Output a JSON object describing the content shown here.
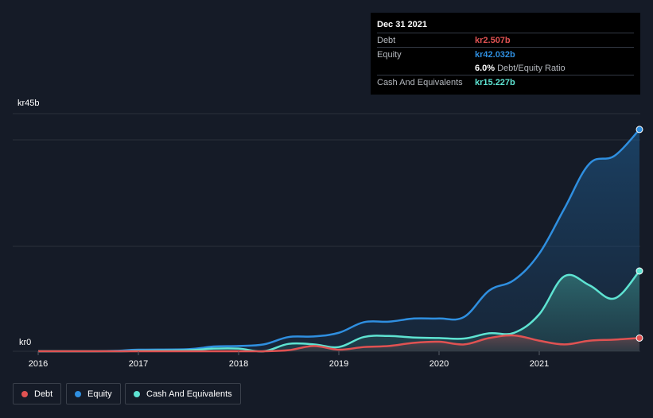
{
  "tooltip": {
    "date": "Dec 31 2021",
    "rows": [
      {
        "label": "Debt",
        "value": "kr2.507b",
        "color": "#e05252"
      },
      {
        "label": "Equity",
        "value": "kr42.032b",
        "color": "#2f8fe0"
      },
      {
        "label": "",
        "value": "6.0%",
        "sub": "Debt/Equity Ratio",
        "color": "#ffffff"
      },
      {
        "label": "Cash And Equivalents",
        "value": "kr15.227b",
        "color": "#5ee3d2"
      }
    ]
  },
  "legend": [
    {
      "label": "Debt",
      "color": "#e05252"
    },
    {
      "label": "Equity",
      "color": "#2f8fe0"
    },
    {
      "label": "Cash And Equivalents",
      "color": "#5ee3d2"
    }
  ],
  "chart_data": {
    "type": "area",
    "y_top_label": "kr45b",
    "y_bottom_label": "kr0",
    "ylim": [
      0,
      45
    ],
    "xlim": [
      2016.0,
      2022.0
    ],
    "x_ticks": [
      "2016",
      "2017",
      "2018",
      "2019",
      "2020",
      "2021"
    ],
    "grid": true,
    "series": [
      {
        "name": "Equity",
        "color": "#2f8fe0",
        "points": [
          [
            2016.0,
            0
          ],
          [
            2016.5,
            0
          ],
          [
            2016.8,
            0.1
          ],
          [
            2017.0,
            0.3
          ],
          [
            2017.5,
            0.4
          ],
          [
            2017.75,
            0.9
          ],
          [
            2018.0,
            1.0
          ],
          [
            2018.25,
            1.3
          ],
          [
            2018.5,
            2.7
          ],
          [
            2018.75,
            2.8
          ],
          [
            2019.0,
            3.5
          ],
          [
            2019.25,
            5.5
          ],
          [
            2019.5,
            5.6
          ],
          [
            2019.75,
            6.2
          ],
          [
            2020.0,
            6.2
          ],
          [
            2020.25,
            6.5
          ],
          [
            2020.5,
            11.5
          ],
          [
            2020.75,
            13.5
          ],
          [
            2021.0,
            18.5
          ],
          [
            2021.25,
            27.0
          ],
          [
            2021.5,
            35.5
          ],
          [
            2021.75,
            37.0
          ],
          [
            2022.0,
            42.0
          ]
        ]
      },
      {
        "name": "Cash And Equivalents",
        "color": "#5ee3d2",
        "points": [
          [
            2016.0,
            0
          ],
          [
            2016.8,
            0
          ],
          [
            2017.0,
            0.1
          ],
          [
            2017.5,
            0.2
          ],
          [
            2017.75,
            0.5
          ],
          [
            2018.0,
            0.5
          ],
          [
            2018.25,
            0.0
          ],
          [
            2018.5,
            1.4
          ],
          [
            2018.75,
            1.3
          ],
          [
            2019.0,
            0.8
          ],
          [
            2019.25,
            2.7
          ],
          [
            2019.5,
            2.9
          ],
          [
            2019.75,
            2.6
          ],
          [
            2020.0,
            2.5
          ],
          [
            2020.25,
            2.4
          ],
          [
            2020.5,
            3.4
          ],
          [
            2020.75,
            3.5
          ],
          [
            2021.0,
            7.0
          ],
          [
            2021.25,
            14.2
          ],
          [
            2021.5,
            12.5
          ],
          [
            2021.75,
            10.0
          ],
          [
            2022.0,
            15.2
          ]
        ]
      },
      {
        "name": "Debt",
        "color": "#e05252",
        "points": [
          [
            2016.0,
            0
          ],
          [
            2018.0,
            0
          ],
          [
            2018.25,
            0.0
          ],
          [
            2018.5,
            0.2
          ],
          [
            2018.75,
            1.0
          ],
          [
            2019.0,
            0.3
          ],
          [
            2019.25,
            0.8
          ],
          [
            2019.5,
            1.0
          ],
          [
            2019.75,
            1.6
          ],
          [
            2020.0,
            1.8
          ],
          [
            2020.25,
            1.3
          ],
          [
            2020.5,
            2.5
          ],
          [
            2020.75,
            3.0
          ],
          [
            2021.0,
            2.0
          ],
          [
            2021.25,
            1.3
          ],
          [
            2021.5,
            2.0
          ],
          [
            2021.75,
            2.2
          ],
          [
            2022.0,
            2.5
          ]
        ]
      }
    ]
  }
}
